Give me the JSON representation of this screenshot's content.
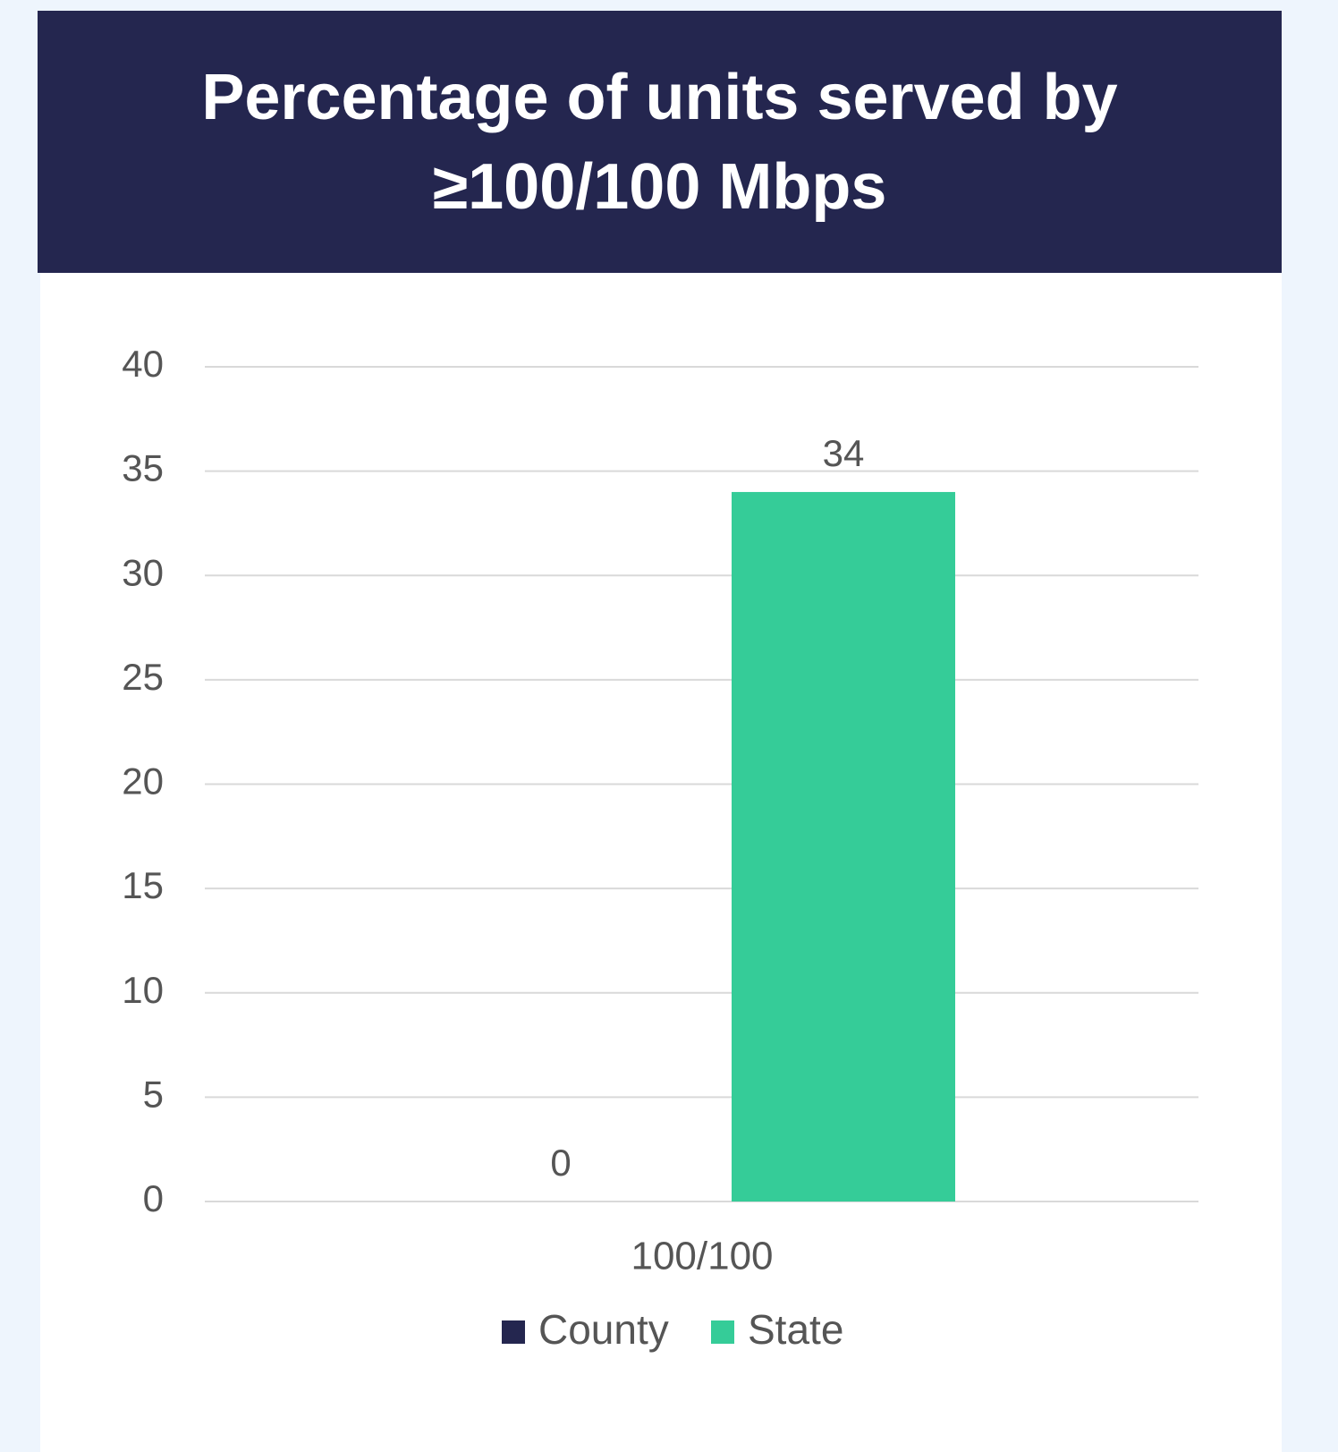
{
  "chart_data": {
    "type": "bar",
    "title": "Percentage of units served by ≥100/100 Mbps",
    "categories": [
      "100/100"
    ],
    "series": [
      {
        "name": "County",
        "color": "#24264f",
        "values": [
          0
        ]
      },
      {
        "name": "State",
        "color": "#35cc98",
        "values": [
          34
        ]
      }
    ],
    "ylim": [
      0,
      40
    ],
    "yticks": [
      0,
      5,
      10,
      15,
      20,
      25,
      30,
      35,
      40
    ],
    "grid": true,
    "legend": "bottom"
  }
}
